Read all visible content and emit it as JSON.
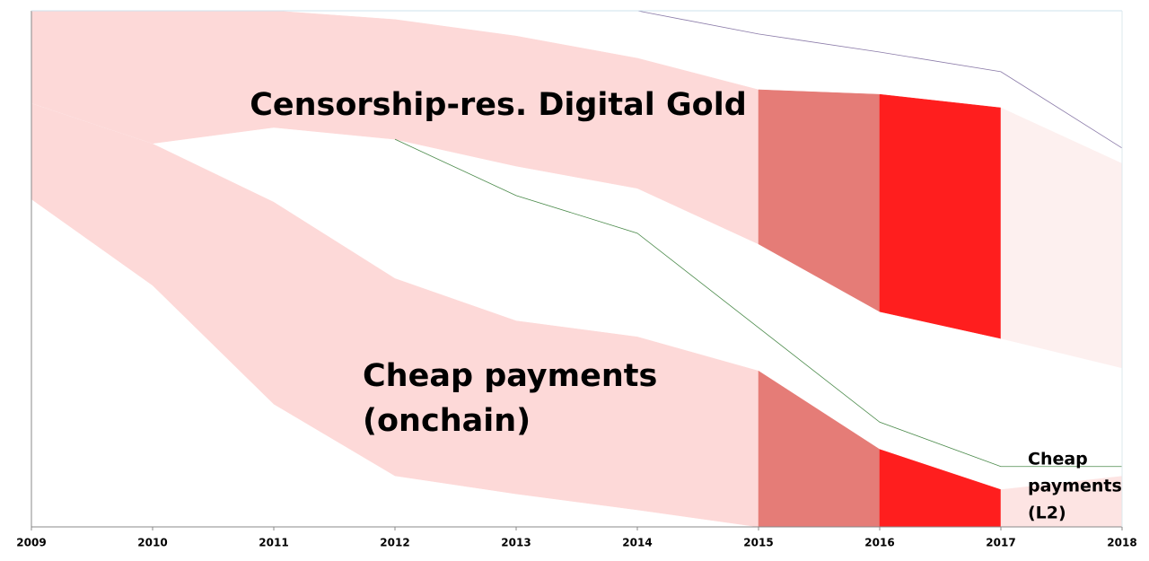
{
  "chart_data": {
    "type": "stacked_area",
    "x": [
      2009,
      2010,
      2011,
      2012,
      2013,
      2014,
      2015,
      2016,
      2017,
      2018
    ],
    "xlim": [
      2009,
      2018
    ],
    "xticks": [
      2009,
      2010,
      2011,
      2012,
      2013,
      2014,
      2015,
      2016,
      2017,
      2018
    ],
    "ylim": [
      0,
      100
    ],
    "series": [
      {
        "values": [
          63.5,
          46.8,
          23.8,
          9.9,
          6.4,
          3.3,
          0,
          0,
          0,
          0
        ],
        "segment_colors": [
          "#ffffff",
          "#ffffff",
          "#ffffff",
          "#ffffff",
          "#ffffff",
          "#ffffff",
          "#ffffff",
          "#ffffff",
          "#ffffff"
        ]
      },
      {
        "values": [
          18.6,
          27.5,
          39.2,
          38.3,
          33.6,
          33.6,
          30.3,
          15.1,
          7.3,
          9.9
        ],
        "segment_colors": [
          "#fdd9d8",
          "#fdd9d8",
          "#fdd9d8",
          "#fdd9d8",
          "#fdd9d8",
          "#fdd9d8",
          "#e57c77",
          "#ff1e1e",
          "#fde4e3"
        ]
      },
      {
        "values": [
          0,
          0,
          14.4,
          26.9,
          29.9,
          28.7,
          24.5,
          26.6,
          29.2,
          20.9
        ],
        "segment_colors": [
          "#ffffff",
          "#ffffff",
          "#ffffff",
          "#ffffff",
          "#ffffff",
          "#ffffff",
          "#ffffff",
          "#ffffff",
          "#ffffff"
        ]
      },
      {
        "values": [
          17.9,
          25.7,
          22.6,
          23.2,
          25.2,
          25.2,
          29.9,
          42.1,
          44.7,
          39.6
        ],
        "segment_colors": [
          "#fdd9d8",
          "#fdd9d8",
          "#fdd9d8",
          "#fdd9d8",
          "#fdd9d8",
          "#fdd9d8",
          "#e57c77",
          "#ff1e1e",
          "#fdf0ef"
        ]
      }
    ],
    "lines": [
      {
        "color": "#4a8a4a",
        "values": [
          null,
          null,
          null,
          75.1,
          64.2,
          56.9,
          38.6,
          20.3,
          11.7,
          11.7
        ]
      },
      {
        "color": "#8a7aa8",
        "values": [
          null,
          null,
          null,
          null,
          null,
          100,
          95.5,
          92.0,
          88.2,
          73.4
        ]
      }
    ],
    "annotations": [
      {
        "lines": [
          "Censorship-res. Digital Gold"
        ]
      },
      {
        "lines": [
          "Cheap payments",
          "(onchain)"
        ]
      },
      {
        "lines": [
          "Cheap",
          "payments",
          "(L2)"
        ]
      }
    ]
  }
}
